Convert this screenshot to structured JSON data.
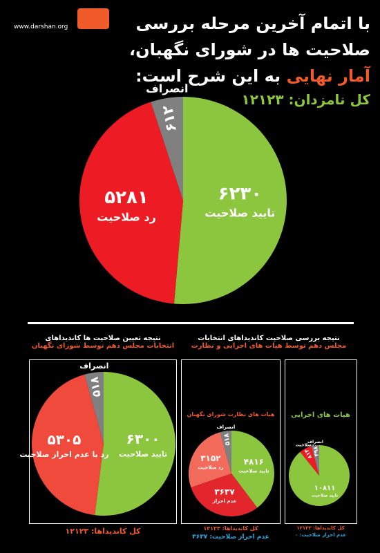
{
  "header": {
    "site": "www.darshan.org",
    "title_lines": [
      "با اتمام آخرین مرحله بررسی",
      "صلاحیت ها در شورای نگهبان،"
    ],
    "title_highlight": "آمار نهایی",
    "title_end": "به این شرح است:"
  },
  "chart_data": [
    {
      "type": "pie",
      "note": "کل نامزدان: ۱۲۱۲۳",
      "categories": [
        "تایید صلاحیت",
        "رد صلاحیت",
        "انصراف"
      ],
      "values": [
        6230,
        5281,
        612
      ],
      "value_labels": [
        "۶۲۳۰",
        "۵۲۸۱",
        "۶۱۲"
      ],
      "colors": [
        "#8cc63f",
        "#ed1c24",
        "#808080"
      ]
    },
    {
      "type": "pie",
      "title": [
        "نتیجه تعیین صلاحیت ها کاندیداهای",
        "انتخابات مجلس دهم توسط شورای نگهبان"
      ],
      "notes": [
        "کل کاندیداها: ۱۲۱۲۳"
      ],
      "categories": [
        "تایید صلاحیت",
        "رد یا عدم احراز صلاحیت",
        "انصراف"
      ],
      "values": [
        6300,
        5305,
        518
      ],
      "value_labels": [
        "۶۳۰۰",
        "۵۳۰۵",
        "۵۱۸"
      ],
      "colors": [
        "#8cc63f",
        "#ef4a3c",
        "#808080"
      ]
    },
    {
      "type": "pie",
      "title": [
        "نتیجه بررسی صلاحیت کاندیداهای انتخابات",
        "مجلس دهم توسط هیات های اجرایی و نظارت"
      ],
      "subtitle": "هیات های نظارت شورای نگهبان",
      "notes": [
        "کل کاندیداها: ۱۲۱۲۳",
        "عدم احراز صلاحیت: ۳۶۳۷"
      ],
      "categories": [
        "تایید صلاحیت",
        "عدم احراز",
        "رد صلاحیت",
        "انصراف"
      ],
      "values": [
        4816,
        3637,
        3152,
        518
      ],
      "value_labels": [
        "۴۸۱۶",
        "۳۶۳۷",
        "۳۱۵۲",
        "۵۱۸"
      ],
      "colors": [
        "#8cc63f",
        "#e2262b",
        "#f26b5b",
        "#808080"
      ]
    },
    {
      "type": "pie",
      "subtitle": "هیات های اجرایی",
      "notes": [
        "کل کاندیداها: ۱۲۱۲۳",
        "عدم احراز صلاحیت: ۰"
      ],
      "categories": [
        "تایید صلاحیت",
        "ردصلاحیت",
        "انصراف"
      ],
      "values": [
        10811,
        814,
        498
      ],
      "value_labels": [
        "۱۰۸۱۱",
        "۸۱۴",
        "۴۹۸"
      ],
      "colors": [
        "#8cc63f",
        "#ed1c24",
        "#808080"
      ]
    }
  ]
}
